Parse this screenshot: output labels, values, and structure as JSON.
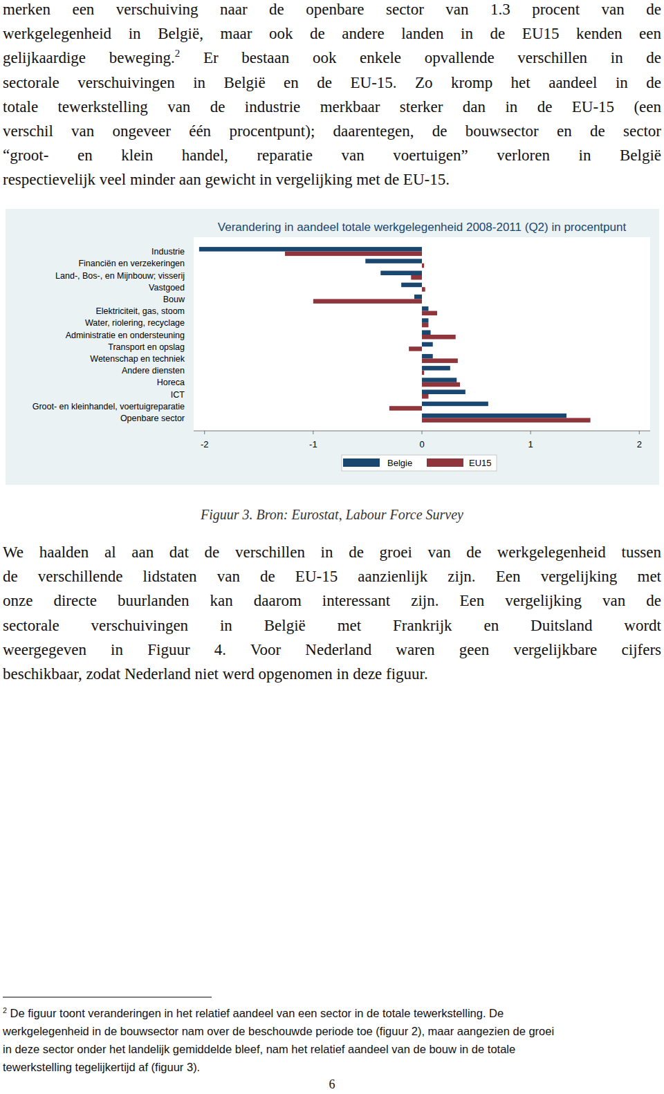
{
  "document": {
    "paragraphs": [
      {
        "lines": [
          "merken een verschuiving naar de openbare sector van 1.3 procent van de",
          "werkgelegenheid in België, maar ook de andere landen in de EU15 kenden een",
          {
            "text": "gelijkaardige beweging.",
            "sup": "2",
            "rest": " Er bestaan ook enkele opvallende verschillen in de"
          },
          "sectorale verschuivingen in België en de EU-15. Zo kromp het aandeel in de",
          "totale tewerkstelling van de industrie merkbaar sterker dan in de EU-15 (een",
          "verschil van ongeveer één procentpunt); daarentegen, de bouwsector en de sector",
          "“groot- en klein handel, reparatie van voertuigen” verloren in België",
          "respectievelijk veel minder aan gewicht in vergelijking met de EU-15."
        ]
      },
      {
        "lines": [
          "We haalden al aan dat de verschillen in de groei van de werkgelegenheid tussen",
          "de verschillende lidstaten van de EU-15 aanzienlijk zijn. Een vergelijking met",
          "onze directe buurlanden kan daarom interessant zijn. Een vergelijking van de",
          "sectorale verschuivingen in België met Frankrijk en Duitsland wordt",
          "weergegeven in Figuur 4. Voor Nederland waren geen vergelijkbare cijfers",
          "beschikbaar, zodat Nederland niet werd opgenomen in deze figuur."
        ]
      }
    ],
    "figure_caption": "Figuur 3. Bron: Eurostat, Labour Force Survey",
    "footnote": {
      "marker": "2",
      "lines": [
        " De figuur toont veranderingen in het relatief aandeel van een sector in de totale tewerkstelling. De",
        "werkgelegenheid in de bouwsector nam over de beschouwde periode toe (figuur 2), maar aangezien de groei",
        "in deze sector onder het landelijk gemiddelde bleef, nam het relatief aandeel van de bouw in de totale",
        "tewerkstelling tegelijkertijd af (figuur 3)."
      ]
    },
    "page_number": 6
  },
  "chart_data": {
    "type": "bar",
    "orientation": "horizontal",
    "title": "Verandering in aandeel totale werkgelegenheid 2008-2011 (Q2) in procentpunt",
    "categories": [
      "Industrie",
      "Financiën en verzekeringen",
      "Land-, Bos-, en Mijnbouw; visserij",
      "Vastgoed",
      "Bouw",
      "Elektriciteit, gas, stoom",
      "Water, riolering, recyclage",
      "Administratie en ondersteuning",
      "Transport en opslag",
      "Wetenschap en techniek",
      "Andere diensten",
      "Horeca",
      "ICT",
      "Groot- en kleinhandel, voertuigreparatie",
      "Openbare sector"
    ],
    "series": [
      {
        "name": "Belgie",
        "color": "#1a476f",
        "values": [
          -2.05,
          -0.52,
          -0.38,
          -0.19,
          -0.07,
          0.06,
          0.06,
          0.08,
          0.1,
          0.1,
          0.26,
          0.32,
          0.4,
          0.61,
          1.33
        ]
      },
      {
        "name": "EU15",
        "color": "#90353b",
        "values": [
          -1.26,
          0.02,
          -0.1,
          0.03,
          -1.0,
          0.14,
          0.06,
          0.31,
          -0.12,
          0.33,
          0.02,
          0.35,
          0.06,
          -0.3,
          1.55
        ]
      }
    ],
    "xlim": [
      -2.1,
      2.1
    ],
    "xticks": [
      -2,
      -1,
      0,
      1,
      2
    ],
    "grid": false,
    "legend": "bottom"
  }
}
